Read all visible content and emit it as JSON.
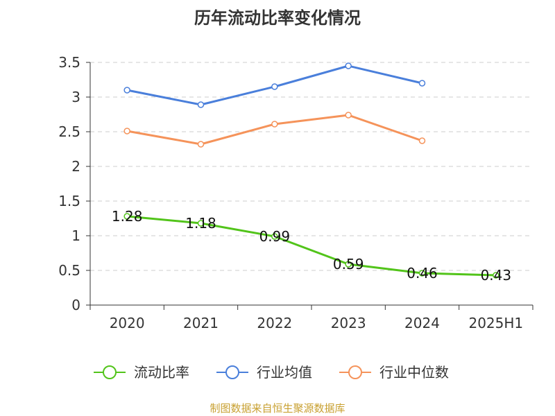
{
  "chart_data": {
    "type": "line",
    "title": "历年流动比率变化情况",
    "categories": [
      "2020",
      "2021",
      "2022",
      "2023",
      "2024",
      "2025H1"
    ],
    "ylim": [
      0,
      3.5
    ],
    "yticks": [
      "0",
      "0.5",
      "1",
      "1.5",
      "2",
      "2.5",
      "3",
      "3.5"
    ],
    "grid": true,
    "legend_position": "bottom",
    "series": [
      {
        "name": "流动比率",
        "color": "#52c41a",
        "values": [
          1.28,
          1.18,
          0.99,
          0.59,
          0.46,
          0.43
        ],
        "labels": [
          "1.28",
          "1.18",
          "0.99",
          "0.59",
          "0.46",
          "0.43"
        ]
      },
      {
        "name": "行业均值",
        "color": "#4a7fdb",
        "values": [
          3.1,
          2.89,
          3.15,
          3.45,
          3.2,
          null
        ]
      },
      {
        "name": "行业中位数",
        "color": "#f5935a",
        "values": [
          2.51,
          2.32,
          2.61,
          2.74,
          2.37,
          null
        ]
      }
    ]
  },
  "source": "制图数据来自恒生聚源数据库"
}
